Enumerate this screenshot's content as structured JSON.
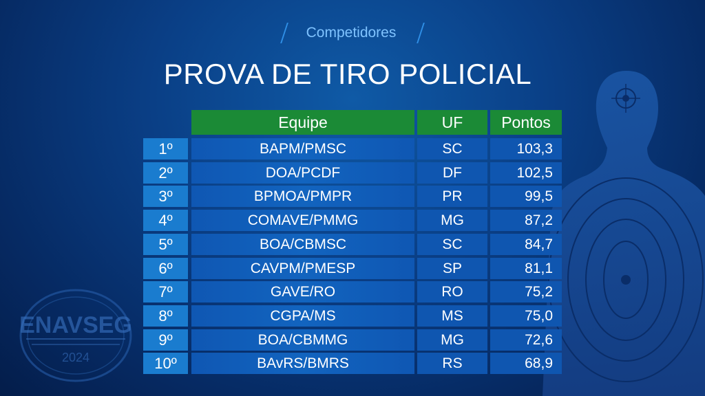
{
  "badge": "Competidores",
  "title": "PROVA DE TIRO POLICIAL",
  "headers": {
    "equipe": "Equipe",
    "uf": "UF",
    "pontos": "Pontos"
  },
  "rows": [
    {
      "pos": "1º",
      "equipe": "BAPM/PMSC",
      "uf": "SC",
      "pontos": "103,3"
    },
    {
      "pos": "2º",
      "equipe": "DOA/PCDF",
      "uf": "DF",
      "pontos": "102,5"
    },
    {
      "pos": "3º",
      "equipe": "BPMOA/PMPR",
      "uf": "PR",
      "pontos": "99,5"
    },
    {
      "pos": "4º",
      "equipe": "COMAVE/PMMG",
      "uf": "MG",
      "pontos": "87,2"
    },
    {
      "pos": "5º",
      "equipe": "BOA/CBMSC",
      "uf": "SC",
      "pontos": "84,7"
    },
    {
      "pos": "6º",
      "equipe": "CAVPM/PMESP",
      "uf": "SP",
      "pontos": "81,1"
    },
    {
      "pos": "7º",
      "equipe": "GAVE/RO",
      "uf": "RO",
      "pontos": "75,2"
    },
    {
      "pos": "8º",
      "equipe": "CGPA/MS",
      "uf": "MS",
      "pontos": "75,0"
    },
    {
      "pos": "9º",
      "equipe": "BOA/CBMMG",
      "uf": "MG",
      "pontos": "72,6"
    },
    {
      "pos": "10º",
      "equipe": "BAvRS/BMRS",
      "uf": "RS",
      "pontos": "68,9"
    }
  ],
  "logo": {
    "name": "ENAVSEG",
    "year": "2024"
  },
  "colors": {
    "header_green": "#1b8a36",
    "position_blue": "#1a7ccf",
    "row_blue": "#0f56b0",
    "tag_blue": "#7fc3ff"
  }
}
